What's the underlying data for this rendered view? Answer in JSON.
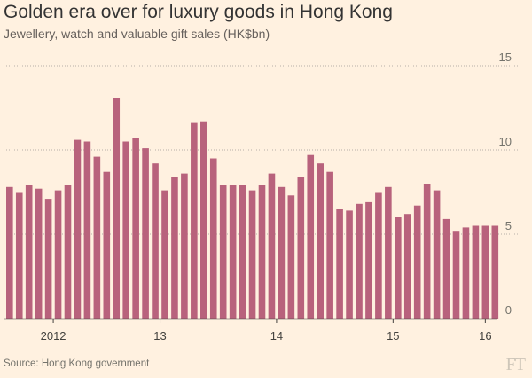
{
  "chart_data": {
    "type": "bar",
    "title": "Golden era over for luxury goods in Hong Kong",
    "subtitle": "Jewellery, watch and valuable gift sales (HK$bn)",
    "source": "Source: Hong Kong government",
    "logo": "FT",
    "ylim": [
      0,
      15
    ],
    "yticks": [
      "0",
      "5",
      "10",
      "15"
    ],
    "x_tick_labels": [
      {
        "label": "2012",
        "index": 4.5
      },
      {
        "label": "13",
        "index": 15.5
      },
      {
        "label": "14",
        "index": 27.5
      },
      {
        "label": "15",
        "index": 39.5
      },
      {
        "label": "16",
        "index": 49
      }
    ],
    "grid": true,
    "legend": "none",
    "colors": {
      "bar": "#b8627c",
      "background": "#fff1e0",
      "grid": "#b7b0a8",
      "axis": "#43423e"
    },
    "series": [
      {
        "values": [
          7.8,
          7.5,
          7.9,
          7.7,
          7.1,
          7.6,
          7.9,
          10.6,
          10.5,
          9.6,
          8.7,
          13.1,
          10.5,
          10.7,
          10.1,
          9.2,
          7.6,
          8.4,
          8.6,
          11.6,
          11.7,
          9.5,
          7.9,
          7.9,
          7.9,
          7.6,
          7.9,
          8.6,
          7.8,
          7.3,
          8.4,
          9.7,
          9.2,
          8.7,
          6.5,
          6.4,
          6.8,
          6.9,
          7.5,
          7.8,
          6.0,
          6.2,
          6.7,
          8.0,
          7.6,
          5.9,
          5.2,
          5.4,
          5.5,
          5.5,
          5.5
        ]
      }
    ]
  }
}
